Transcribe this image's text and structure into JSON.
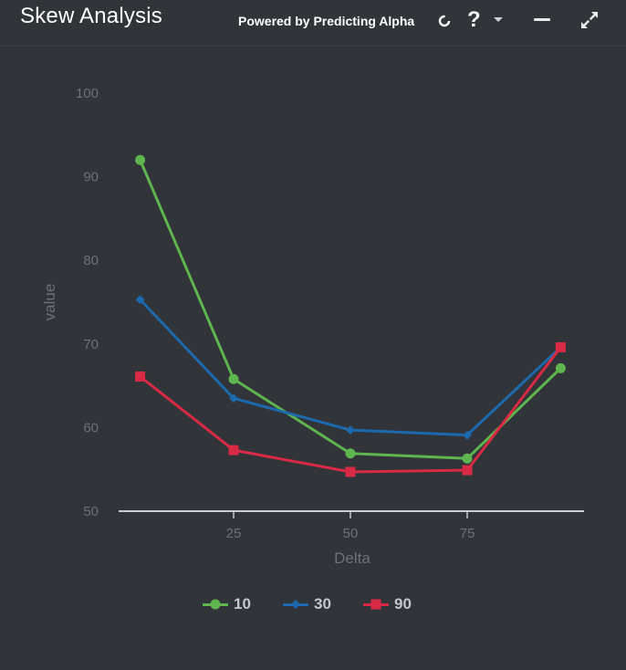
{
  "header": {
    "title": "Skew Analysis",
    "powered_by": "Powered by Predicting Alpha",
    "help_label": "?"
  },
  "icons": [
    "refresh-icon",
    "help-icon",
    "chevron-down-icon",
    "minimize-icon",
    "expand-icon"
  ],
  "colors": {
    "background": "#313439",
    "series_10": "#5fb54f",
    "series_30": "#1d69ad",
    "series_90": "#d92a45",
    "axis": "#c9ccd1",
    "tick_text": "#6d7179"
  },
  "chart_data": {
    "type": "line",
    "xlabel": "Delta",
    "ylabel": "value",
    "xlim": [
      0,
      100
    ],
    "ylim": [
      50,
      100
    ],
    "x_ticks": [
      25,
      50,
      75
    ],
    "y_ticks": [
      50,
      60,
      70,
      80,
      90,
      100
    ],
    "grid": false,
    "legend": "bottom",
    "series": [
      {
        "name": "10",
        "marker": "circle",
        "color": "#5fb54f",
        "points": [
          [
            5,
            92
          ],
          [
            25,
            65.8
          ],
          [
            50,
            56.9
          ],
          [
            75,
            56.3
          ],
          [
            95,
            67.1
          ]
        ]
      },
      {
        "name": "30",
        "marker": "diamond",
        "color": "#1d69ad",
        "points": [
          [
            5,
            75.3
          ],
          [
            25,
            63.5
          ],
          [
            50,
            59.7
          ],
          [
            75,
            59.1
          ],
          [
            95,
            69.6
          ]
        ]
      },
      {
        "name": "90",
        "marker": "square",
        "color": "#d92a45",
        "points": [
          [
            5,
            66.1
          ],
          [
            25,
            57.3
          ],
          [
            50,
            54.7
          ],
          [
            75,
            54.9
          ],
          [
            95,
            69.6
          ]
        ]
      }
    ]
  }
}
